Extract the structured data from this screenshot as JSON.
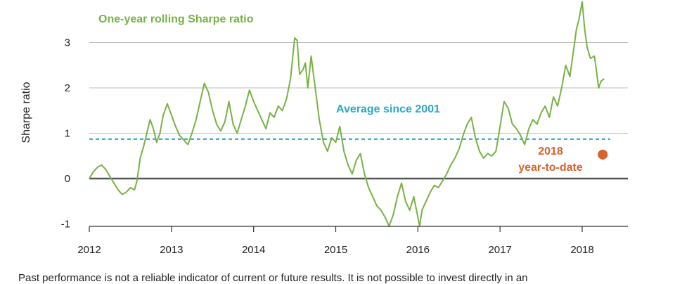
{
  "footnote": "Past performance is not a reliable indicator of current or future results. It is not possible to invest directly in an",
  "chart_data": {
    "type": "line",
    "title": "",
    "xlabel": "",
    "ylabel": "Sharpe ratio",
    "xlim": [
      2012.0,
      2018.6
    ],
    "ylim": [
      -1.2,
      3.9
    ],
    "x_ticks": [
      2012,
      2013,
      2014,
      2015,
      2016,
      2017,
      2018
    ],
    "x_tick_labels": [
      "2012",
      "2013",
      "2014",
      "2015",
      "2016",
      "2017",
      "2018"
    ],
    "y_ticks": [
      -1,
      0,
      1,
      2,
      3
    ],
    "y_tick_labels": [
      "-1",
      "0",
      "1",
      "2",
      "3"
    ],
    "grid": "horizontal",
    "colors": {
      "series": "#78b246",
      "average": "#2aa9c4",
      "ytd": "#d9622b",
      "zero_line": "#555555",
      "grid": "#bbbbbb"
    },
    "series": [
      {
        "name": "One-year rolling Sharpe ratio",
        "x": [
          2012.0,
          2012.05,
          2012.1,
          2012.15,
          2012.2,
          2012.25,
          2012.3,
          2012.35,
          2012.4,
          2012.45,
          2012.5,
          2012.55,
          2012.58,
          2012.62,
          2012.66,
          2012.7,
          2012.74,
          2012.78,
          2012.82,
          2012.86,
          2012.9,
          2012.95,
          2013.0,
          2013.05,
          2013.1,
          2013.15,
          2013.2,
          2013.25,
          2013.3,
          2013.35,
          2013.4,
          2013.45,
          2013.5,
          2013.55,
          2013.6,
          2013.65,
          2013.7,
          2013.75,
          2013.8,
          2013.85,
          2013.9,
          2013.95,
          2014.0,
          2014.05,
          2014.1,
          2014.15,
          2014.2,
          2014.25,
          2014.3,
          2014.35,
          2014.4,
          2014.45,
          2014.5,
          2014.53,
          2014.56,
          2014.6,
          2014.63,
          2014.66,
          2014.7,
          2014.75,
          2014.8,
          2014.85,
          2014.9,
          2014.95,
          2015.0,
          2015.05,
          2015.1,
          2015.15,
          2015.2,
          2015.25,
          2015.3,
          2015.35,
          2015.4,
          2015.45,
          2015.5,
          2015.55,
          2015.6,
          2015.65,
          2015.7,
          2015.75,
          2015.8,
          2015.85,
          2015.9,
          2015.95,
          2016.0,
          2016.02,
          2016.05,
          2016.1,
          2016.15,
          2016.2,
          2016.25,
          2016.3,
          2016.35,
          2016.4,
          2016.45,
          2016.5,
          2016.55,
          2016.6,
          2016.65,
          2016.7,
          2016.75,
          2016.8,
          2016.85,
          2016.9,
          2016.95,
          2017.0,
          2017.05,
          2017.1,
          2017.15,
          2017.2,
          2017.25,
          2017.3,
          2017.35,
          2017.4,
          2017.45,
          2017.5,
          2017.55,
          2017.6,
          2017.65,
          2017.7,
          2017.75,
          2017.8,
          2017.85,
          2017.9,
          2017.93,
          2017.96,
          2018.0,
          2018.03,
          2018.06,
          2018.1,
          2018.15,
          2018.2,
          2018.23,
          2018.27
        ],
        "values": [
          0.0,
          0.15,
          0.25,
          0.3,
          0.2,
          0.05,
          -0.1,
          -0.25,
          -0.35,
          -0.3,
          -0.2,
          -0.25,
          -0.05,
          0.45,
          0.7,
          1.0,
          1.3,
          1.1,
          0.8,
          1.0,
          1.4,
          1.65,
          1.4,
          1.15,
          0.95,
          0.85,
          0.75,
          1.0,
          1.3,
          1.7,
          2.1,
          1.9,
          1.5,
          1.2,
          1.05,
          1.25,
          1.7,
          1.2,
          1.0,
          1.3,
          1.6,
          1.95,
          1.7,
          1.5,
          1.3,
          1.1,
          1.45,
          1.35,
          1.6,
          1.5,
          1.75,
          2.2,
          3.1,
          3.05,
          2.3,
          2.4,
          2.55,
          2.0,
          2.7,
          2.0,
          1.3,
          0.8,
          0.6,
          0.9,
          0.8,
          1.15,
          0.6,
          0.3,
          0.1,
          0.4,
          0.55,
          0.1,
          -0.2,
          -0.4,
          -0.6,
          -0.7,
          -0.85,
          -1.05,
          -0.8,
          -0.4,
          -0.1,
          -0.5,
          -0.7,
          -0.4,
          -0.85,
          -1.05,
          -0.7,
          -0.5,
          -0.3,
          -0.15,
          -0.2,
          -0.05,
          0.1,
          0.3,
          0.45,
          0.65,
          0.95,
          1.2,
          1.35,
          0.9,
          0.6,
          0.45,
          0.55,
          0.5,
          0.6,
          1.15,
          1.7,
          1.55,
          1.2,
          1.1,
          0.95,
          0.75,
          1.1,
          1.3,
          1.2,
          1.45,
          1.6,
          1.35,
          1.8,
          1.6,
          2.0,
          2.5,
          2.25,
          2.9,
          3.3,
          3.5,
          3.9,
          3.3,
          2.9,
          2.65,
          2.7,
          2.0,
          2.15,
          2.2
        ]
      }
    ],
    "reference_line": {
      "label": "Average since 2001",
      "value": 0.87
    },
    "ytd_point": {
      "label_line1": "2018",
      "label_line2": "year-to-date",
      "x": 2018.25,
      "y": 0.53
    }
  }
}
